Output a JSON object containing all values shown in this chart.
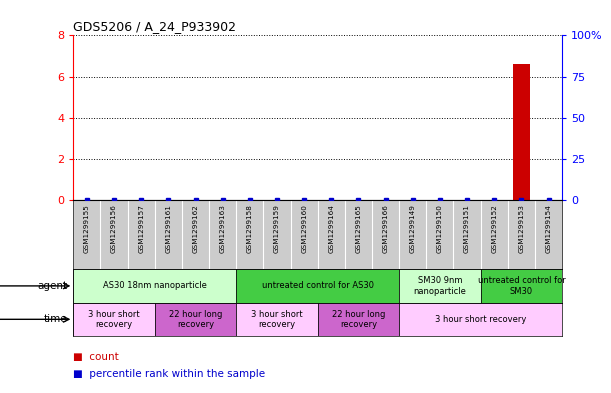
{
  "title": "GDS5206 / A_24_P933902",
  "samples": [
    "GSM1299155",
    "GSM1299156",
    "GSM1299157",
    "GSM1299161",
    "GSM1299162",
    "GSM1299163",
    "GSM1299158",
    "GSM1299159",
    "GSM1299160",
    "GSM1299164",
    "GSM1299165",
    "GSM1299166",
    "GSM1299149",
    "GSM1299150",
    "GSM1299151",
    "GSM1299152",
    "GSM1299153",
    "GSM1299154"
  ],
  "count_values": [
    0,
    0,
    0,
    0,
    0,
    0,
    0,
    0,
    0,
    0,
    0,
    0,
    0,
    0,
    0,
    0,
    6.6,
    0
  ],
  "percentile_values": [
    0,
    0,
    0,
    0,
    0,
    0,
    0,
    0,
    0,
    0,
    0,
    0,
    0,
    0,
    0,
    0,
    0,
    0
  ],
  "count_color": "#cc0000",
  "percentile_color": "#0000cc",
  "ylim_left": [
    0,
    8
  ],
  "ylim_right": [
    0,
    100
  ],
  "yticks_left": [
    0,
    2,
    4,
    6,
    8
  ],
  "yticks_right": [
    0,
    25,
    50,
    75,
    100
  ],
  "ytick_labels_right": [
    "0",
    "25",
    "50",
    "75",
    "100%"
  ],
  "background_color": "#ffffff",
  "label_row_color": "#cccccc",
  "agent_row": {
    "label": "agent",
    "groups": [
      {
        "label": "AS30 18nm nanoparticle",
        "start": 0,
        "end": 6,
        "color": "#ccffcc"
      },
      {
        "label": "untreated control for AS30",
        "start": 6,
        "end": 12,
        "color": "#44cc44"
      },
      {
        "label": "SM30 9nm\nnanoparticle",
        "start": 12,
        "end": 15,
        "color": "#ccffcc"
      },
      {
        "label": "untreated control for\nSM30",
        "start": 15,
        "end": 18,
        "color": "#44cc44"
      }
    ]
  },
  "time_row": {
    "label": "time",
    "groups": [
      {
        "label": "3 hour short\nrecovery",
        "start": 0,
        "end": 3,
        "color": "#ffccff"
      },
      {
        "label": "22 hour long\nrecovery",
        "start": 3,
        "end": 6,
        "color": "#cc66cc"
      },
      {
        "label": "3 hour short\nrecovery",
        "start": 6,
        "end": 9,
        "color": "#ffccff"
      },
      {
        "label": "22 hour long\nrecovery",
        "start": 9,
        "end": 12,
        "color": "#cc66cc"
      },
      {
        "label": "3 hour short recovery",
        "start": 12,
        "end": 18,
        "color": "#ffccff"
      }
    ]
  },
  "legend": [
    {
      "label": "count",
      "color": "#cc0000"
    },
    {
      "label": "percentile rank within the sample",
      "color": "#0000cc"
    }
  ]
}
